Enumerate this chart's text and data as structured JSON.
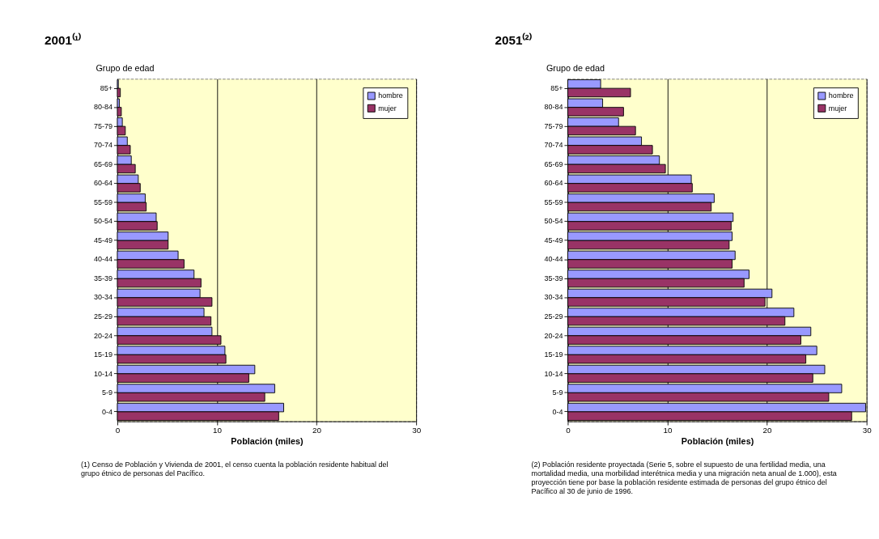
{
  "chart_data": [
    {
      "type": "bar",
      "orientation": "horizontal",
      "title": "2001⁽¹⁾",
      "xlabel": "Población (miles)",
      "ylabel": "Grupo de edad",
      "categories": [
        "85+",
        "80-84",
        "75-79",
        "70-74",
        "65-69",
        "60-64",
        "55-59",
        "50-54",
        "45-49",
        "40-44",
        "35-39",
        "30-34",
        "25-29",
        "20-24",
        "15-19",
        "10-14",
        "5-9",
        "0-4"
      ],
      "series": [
        {
          "name": "hombre",
          "color": "#9999ff",
          "values": [
            0.1,
            0.2,
            0.5,
            1.0,
            1.4,
            2.1,
            2.8,
            3.9,
            5.1,
            6.1,
            7.7,
            8.3,
            8.7,
            9.5,
            10.8,
            13.8,
            15.8,
            16.7
          ]
        },
        {
          "name": "mujer",
          "color": "#993366",
          "values": [
            0.3,
            0.4,
            0.8,
            1.3,
            1.8,
            2.3,
            2.9,
            4.0,
            5.1,
            6.7,
            8.4,
            9.5,
            9.4,
            10.4,
            10.9,
            13.2,
            14.8,
            16.2
          ]
        }
      ],
      "xlim": [
        0,
        30
      ],
      "xticks": [
        0,
        10,
        20,
        30
      ],
      "grid": "x",
      "legend": "top right",
      "annotations": [
        "(1) Censo de Población y Vivienda de 2001, el censo cuenta la población residente habitual del grupo étnico de personas del Pacífico."
      ]
    },
    {
      "type": "bar",
      "orientation": "horizontal",
      "title": "2051⁽²⁾",
      "xlabel": "Población (miles)",
      "ylabel": "Grupo de edad",
      "categories": [
        "85+",
        "80-84",
        "75-79",
        "70-74",
        "65-69",
        "60-64",
        "55-59",
        "50-54",
        "45-49",
        "40-44",
        "35-39",
        "30-34",
        "25-29",
        "20-24",
        "15-19",
        "10-14",
        "5-9",
        "0-4"
      ],
      "series": [
        {
          "name": "hombre",
          "color": "#9999ff",
          "values": [
            3.3,
            3.5,
            5.1,
            7.4,
            9.2,
            12.4,
            14.7,
            16.6,
            16.5,
            16.8,
            18.2,
            20.5,
            22.7,
            24.4,
            25.0,
            25.8,
            27.5,
            29.9
          ]
        },
        {
          "name": "mujer",
          "color": "#993366",
          "values": [
            6.3,
            5.6,
            6.8,
            8.5,
            9.8,
            12.5,
            14.4,
            16.4,
            16.2,
            16.5,
            17.7,
            19.8,
            21.8,
            23.4,
            23.9,
            24.6,
            26.2,
            28.5
          ]
        }
      ],
      "xlim": [
        0,
        30
      ],
      "xticks": [
        0,
        10,
        20,
        30
      ],
      "grid": "x",
      "legend": "top right",
      "annotations": [
        "(2) Población residente proyectada (Serie 5, sobre el supuesto de una fertilidad media, una mortalidad media, una morbilidad interétnica media y una migración neta anual de 1.000), esta proyección tiene por base la población residente estimada de personas del grupo étnico del Pacífico al 30 de junio de 1996."
      ]
    }
  ]
}
